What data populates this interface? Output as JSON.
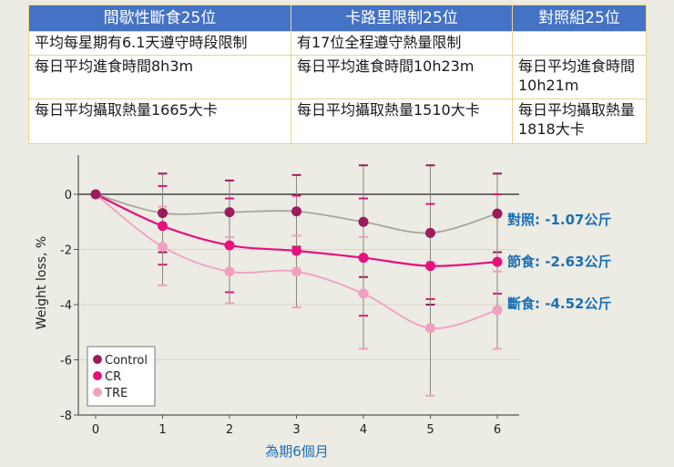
{
  "table": {
    "headers": [
      "間歇性斷食25位",
      "卡路里限制25位",
      "對照組25位"
    ],
    "rows": [
      [
        "平均每星期有6.1天遵守時段限制",
        "有17位全程遵守熱量限制",
        ""
      ],
      [
        "每日平均進食時間8h3m",
        "每日平均進食時間10h23m",
        "每日平均進食時間10h21m"
      ],
      [
        "每日平均攝取熱量1665大卡",
        "每日平均攝取熱量1510大卡",
        "每日平均攝取熱量1818大卡"
      ]
    ]
  },
  "annotations": {
    "control": "對照: -1.07公斤",
    "cr": "節食: -2.63公斤",
    "tre": "斷食: -4.52公斤"
  },
  "colors": {
    "header_bg": "#4472c4",
    "control": "#9b1d5e",
    "cr": "#e5127d",
    "tre": "#f2a0c0",
    "annotation": "#1a6fb5",
    "control_line": "#a8a59c"
  },
  "chart_data": {
    "type": "line",
    "title": "",
    "xlabel": "為期6個月",
    "ylabel": "Weight loss, %",
    "x": [
      0,
      1,
      2,
      3,
      4,
      5,
      6
    ],
    "xticks": [
      "0",
      "1",
      "2",
      "3",
      "4",
      "5",
      "6"
    ],
    "yticks": [
      "0",
      "-2",
      "-4",
      "-6",
      "-8"
    ],
    "ylim": [
      -8,
      1.3
    ],
    "legend": [
      "Control",
      "CR",
      "TRE"
    ],
    "legend_position": "lower-left",
    "series": [
      {
        "name": "Control",
        "values": [
          0,
          -0.68,
          -0.65,
          -0.62,
          -1.0,
          -1.4,
          -0.7
        ],
        "err_low": [
          0,
          -2.1,
          -1.8,
          -1.9,
          -3.0,
          -4.0,
          -2.1
        ],
        "err_high": [
          0,
          0.75,
          0.5,
          0.7,
          1.05,
          1.05,
          0.75
        ]
      },
      {
        "name": "CR",
        "values": [
          0,
          -1.15,
          -1.85,
          -2.05,
          -2.3,
          -2.6,
          -2.45
        ],
        "err_low": [
          0,
          -2.55,
          -3.55,
          -4.1,
          -4.4,
          -3.8,
          -3.6
        ],
        "err_high": [
          0,
          0.3,
          -0.15,
          -0.05,
          -0.15,
          -0.35,
          0.0
        ]
      },
      {
        "name": "TRE",
        "values": [
          0,
          -1.9,
          -2.8,
          -2.8,
          -3.6,
          -4.85,
          -4.2
        ],
        "err_low": [
          0,
          -3.3,
          -3.95,
          -4.1,
          -5.6,
          -7.3,
          -5.6
        ],
        "err_high": [
          0,
          -0.45,
          -1.55,
          -1.5,
          -1.55,
          -2.45,
          -2.8
        ]
      }
    ]
  }
}
